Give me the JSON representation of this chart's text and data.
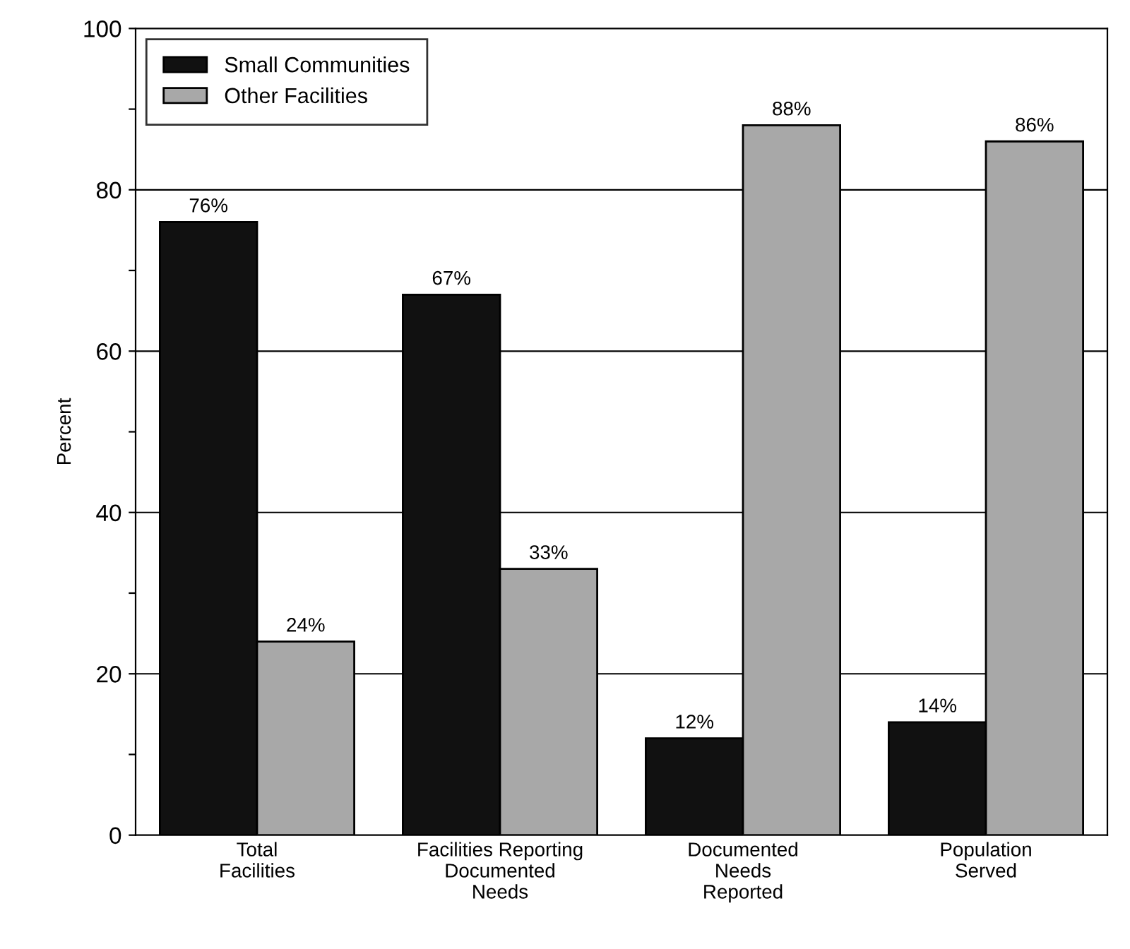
{
  "chart_data": {
    "type": "bar",
    "ylabel": "Percent",
    "categories": [
      "Total\nFacilities",
      "Facilities Reporting\nDocumented\nNeeds",
      "Documented\nNeeds\nReported",
      "Population\nServed"
    ],
    "series": [
      {
        "name": "Small Communities",
        "color": "#111111",
        "values": [
          76,
          67,
          12,
          14
        ],
        "value_labels": [
          "76%",
          "67%",
          "12%",
          "14%"
        ]
      },
      {
        "name": "Other Facilities",
        "color": "#a8a8a8",
        "values": [
          24,
          33,
          88,
          86
        ],
        "value_labels": [
          "24%",
          "33%",
          "88%",
          "86%"
        ]
      }
    ],
    "ylim": [
      0,
      100
    ],
    "yticks": [
      0,
      {
        "value": 10,
        "label": null
      },
      20,
      {
        "value": 30,
        "label": null
      },
      40,
      {
        "value": 50,
        "label": null
      },
      60,
      {
        "value": 70,
        "label": null
      },
      80,
      {
        "value": 90,
        "label": null
      },
      100
    ],
    "grid": "y",
    "legend": "top left"
  }
}
